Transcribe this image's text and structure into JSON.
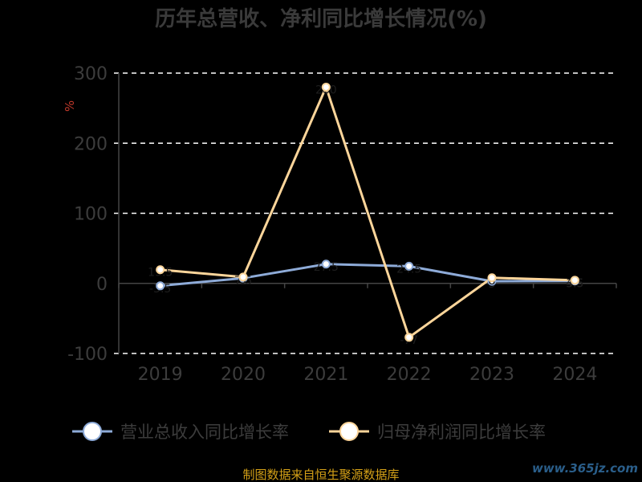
{
  "chart_data": {
    "type": "line",
    "title": "历年总营收、净利同比增长情况(%)",
    "ylabel": "%",
    "categories": [
      "2019",
      "2020",
      "2021",
      "2022",
      "2023",
      "2024"
    ],
    "ylim": [
      -100,
      300
    ],
    "yticks": [
      300,
      200,
      100,
      0,
      -100
    ],
    "grid": true,
    "legend_position": "bottom",
    "series": [
      {
        "name": "营业总收入同比增长率",
        "values": [
          -3.5,
          7.5,
          27.5,
          24.5,
          3,
          3.5
        ],
        "color": "#8eabd8",
        "labels": [
          "-3.5",
          "7.5",
          "27.5",
          "24.5",
          "3",
          "3.5"
        ]
      },
      {
        "name": "归母净利润同比增长率",
        "values": [
          19.5,
          9,
          280,
          -77,
          8,
          4.5
        ],
        "color": "#fcd59a",
        "labels": [
          "19.5",
          "9",
          "280",
          "-77",
          "8",
          "4.5"
        ]
      }
    ]
  },
  "footer": {
    "source": "制图数据来自恒生聚源数据库",
    "watermark": "www.365jz.com"
  },
  "colors": {
    "background": "#000000",
    "grid": "#ffffff",
    "axis": "#444444"
  }
}
